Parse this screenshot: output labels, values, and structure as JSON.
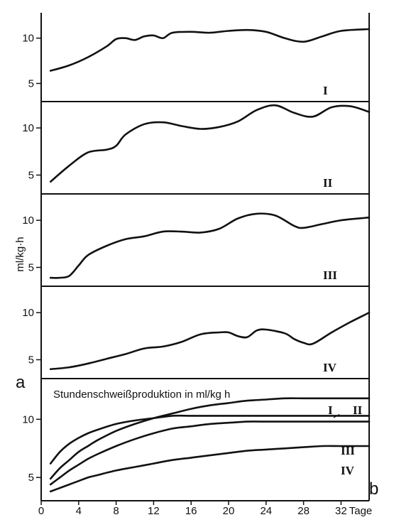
{
  "chart_data": {
    "type": "line",
    "y_axis_label": "ml/kg·h",
    "x_axis_unit": "Tage",
    "x_ticks": [
      0,
      4,
      8,
      12,
      16,
      20,
      24,
      28,
      32
    ],
    "x_range": [
      0,
      35
    ],
    "panel_letter_a": "a",
    "panel_letter_b": "b",
    "subject_panels": [
      {
        "label": "I",
        "ylim": [
          3,
          12.8
        ],
        "y_ticks": [
          5,
          10
        ],
        "x": [
          1,
          3,
          5,
          7,
          8,
          9,
          10,
          11,
          12,
          13,
          14,
          16,
          18,
          20,
          22,
          24,
          26,
          28,
          30,
          32,
          35
        ],
        "y": [
          6.4,
          7.0,
          7.9,
          9.1,
          9.9,
          10.0,
          9.8,
          10.2,
          10.3,
          10.0,
          10.6,
          10.7,
          10.6,
          10.8,
          10.9,
          10.7,
          10.0,
          9.6,
          10.2,
          10.8,
          11.0
        ]
      },
      {
        "label": "II",
        "ylim": [
          3,
          12.8
        ],
        "y_ticks": [
          5,
          10
        ],
        "x": [
          1,
          3,
          5,
          7,
          8,
          9,
          11,
          13,
          15,
          17,
          19,
          21,
          23,
          25,
          27,
          29,
          31,
          33,
          35
        ],
        "y": [
          4.3,
          6.0,
          7.4,
          7.7,
          8.1,
          9.3,
          10.4,
          10.6,
          10.2,
          9.9,
          10.1,
          10.7,
          11.9,
          12.4,
          11.6,
          11.2,
          12.2,
          12.3,
          11.7
        ]
      },
      {
        "label": "III",
        "ylim": [
          3,
          12.8
        ],
        "y_ticks": [
          5,
          10
        ],
        "x": [
          1,
          2,
          3,
          4,
          5,
          7,
          9,
          11,
          13,
          15,
          17,
          19,
          21,
          23,
          25,
          27,
          28,
          30,
          32,
          35
        ],
        "y": [
          3.9,
          3.9,
          4.1,
          5.2,
          6.3,
          7.3,
          8.0,
          8.3,
          8.8,
          8.8,
          8.7,
          9.1,
          10.2,
          10.7,
          10.5,
          9.4,
          9.2,
          9.6,
          10.0,
          10.3
        ]
      },
      {
        "label": "IV",
        "ylim": [
          3,
          12.8
        ],
        "y_ticks": [
          5,
          10
        ],
        "x": [
          1,
          3,
          5,
          7,
          9,
          11,
          13,
          15,
          17,
          19,
          20,
          21,
          22,
          23,
          24,
          26,
          27,
          28,
          29,
          31,
          33,
          35
        ],
        "y": [
          4.0,
          4.2,
          4.6,
          5.1,
          5.6,
          6.2,
          6.4,
          6.9,
          7.7,
          7.9,
          7.9,
          7.5,
          7.4,
          8.1,
          8.2,
          7.8,
          7.2,
          6.8,
          6.7,
          7.9,
          9.0,
          10.0
        ]
      }
    ],
    "summary_panel": {
      "title": "Stundenschweißproduktion in ml/kg h",
      "ylim": [
        3,
        13.5
      ],
      "y_ticks": [
        5,
        10
      ],
      "x": [
        1,
        2,
        3,
        4,
        5,
        6,
        8,
        10,
        12,
        14,
        16,
        18,
        20,
        22,
        24,
        26,
        28,
        30,
        32,
        35
      ],
      "series": [
        {
          "name": "I",
          "values": [
            6.2,
            7.2,
            7.9,
            8.4,
            8.8,
            9.1,
            9.6,
            9.9,
            10.1,
            10.3,
            10.3,
            10.3,
            10.3,
            10.3,
            10.3,
            10.3,
            10.3,
            10.3,
            10.3,
            10.3
          ]
        },
        {
          "name": "II",
          "values": [
            4.9,
            5.8,
            6.5,
            7.2,
            7.7,
            8.2,
            9.0,
            9.6,
            10.1,
            10.5,
            10.9,
            11.2,
            11.4,
            11.6,
            11.7,
            11.8,
            11.8,
            11.8,
            11.8,
            11.8
          ]
        },
        {
          "name": "III",
          "values": [
            4.4,
            5.0,
            5.6,
            6.1,
            6.6,
            7.0,
            7.7,
            8.3,
            8.8,
            9.2,
            9.4,
            9.6,
            9.7,
            9.8,
            9.8,
            9.8,
            9.8,
            9.8,
            9.8,
            9.8
          ]
        },
        {
          "name": "IV",
          "values": [
            3.8,
            4.1,
            4.4,
            4.7,
            5.0,
            5.2,
            5.6,
            5.9,
            6.2,
            6.5,
            6.7,
            6.9,
            7.1,
            7.3,
            7.4,
            7.5,
            7.6,
            7.7,
            7.7,
            7.7
          ]
        }
      ]
    }
  }
}
